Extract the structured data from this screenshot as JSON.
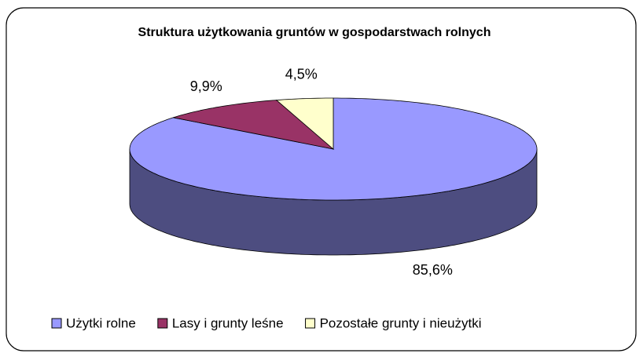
{
  "chart_data": {
    "type": "pie3d",
    "title": "Struktura użytkowania gruntów w gospodarstwach rolnych",
    "categories": [
      "Użytki rolne",
      "Lasy i grunty leśne",
      "Pozostałe grunty i nieużytki"
    ],
    "values": [
      85.6,
      9.9,
      4.5
    ],
    "value_labels": [
      "85,6%",
      "9,9%",
      "4,5%"
    ],
    "colors": [
      "#9999ff",
      "#993366",
      "#ffffcc"
    ],
    "legend": "bottom"
  }
}
